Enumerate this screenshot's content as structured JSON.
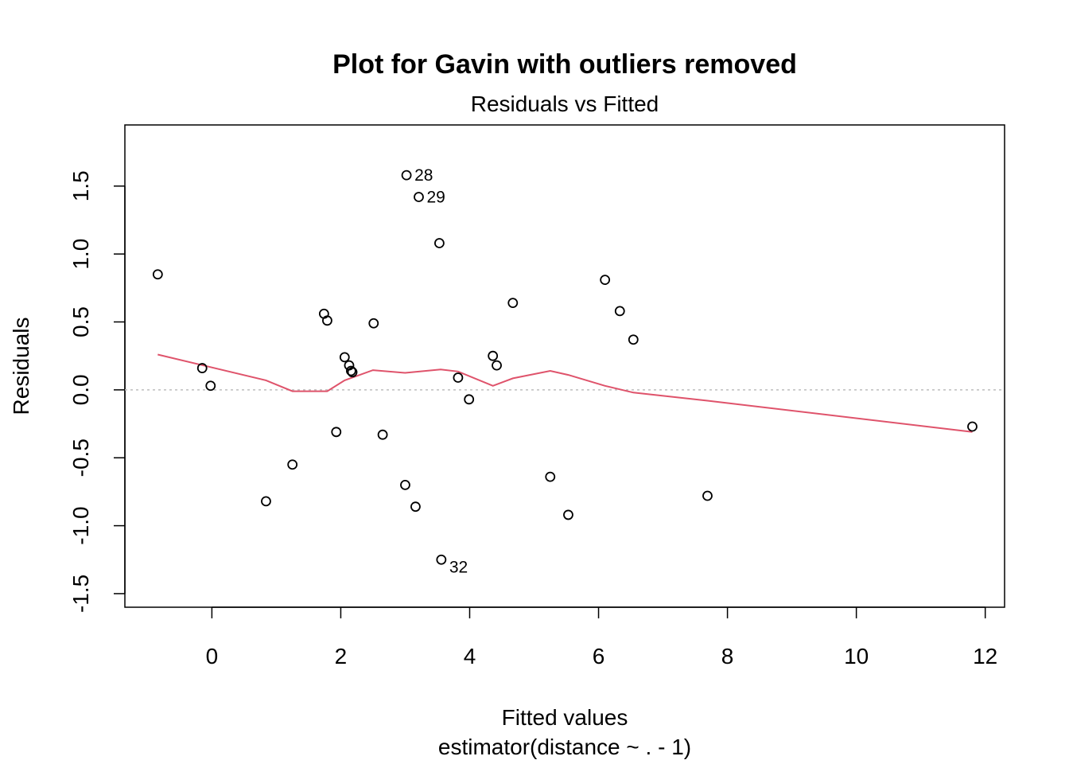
{
  "chart_data": {
    "type": "scatter",
    "title": "Plot for Gavin with outliers removed",
    "subtitle": "Residuals vs Fitted",
    "xlabel": "Fitted values",
    "xlabel2": "estimator(distance ~ . - 1)",
    "ylabel": "Residuals",
    "xlim": [
      -1.35,
      12.3
    ],
    "ylim": [
      -1.6,
      1.95
    ],
    "x_ticks": [
      0,
      2,
      4,
      6,
      8,
      10,
      12
    ],
    "x_tick_labels": [
      "0",
      "2",
      "4",
      "6",
      "8",
      "10",
      "12"
    ],
    "y_ticks": [
      -1.5,
      -1.0,
      -0.5,
      0.0,
      0.5,
      1.0,
      1.5
    ],
    "y_tick_labels": [
      "-1.5",
      "-1.0",
      "-0.5",
      "0.0",
      "0.5",
      "1.0",
      "1.5"
    ],
    "reference_line_y": 0,
    "smooth_color": "#DF536B",
    "reference_color": "#BEBEBE",
    "points": [
      {
        "x": -0.84,
        "y": 0.85
      },
      {
        "x": -0.15,
        "y": 0.16
      },
      {
        "x": -0.02,
        "y": 0.03
      },
      {
        "x": 0.84,
        "y": -0.82
      },
      {
        "x": 1.25,
        "y": -0.55
      },
      {
        "x": 1.74,
        "y": 0.56
      },
      {
        "x": 1.79,
        "y": 0.51
      },
      {
        "x": 1.93,
        "y": -0.31
      },
      {
        "x": 2.06,
        "y": 0.24
      },
      {
        "x": 2.13,
        "y": 0.18
      },
      {
        "x": 2.16,
        "y": 0.14
      },
      {
        "x": 2.18,
        "y": 0.13
      },
      {
        "x": 2.51,
        "y": 0.49
      },
      {
        "x": 2.65,
        "y": -0.33
      },
      {
        "x": 3.0,
        "y": -0.7
      },
      {
        "x": 3.02,
        "y": 1.58,
        "label": "28"
      },
      {
        "x": 3.16,
        "y": -0.86
      },
      {
        "x": 3.21,
        "y": 1.42,
        "label": "29"
      },
      {
        "x": 3.53,
        "y": 1.08
      },
      {
        "x": 3.56,
        "y": -1.25,
        "label": "32"
      },
      {
        "x": 3.82,
        "y": 0.09
      },
      {
        "x": 3.99,
        "y": -0.07
      },
      {
        "x": 4.36,
        "y": 0.25
      },
      {
        "x": 4.42,
        "y": 0.18
      },
      {
        "x": 4.67,
        "y": 0.64
      },
      {
        "x": 5.25,
        "y": -0.64
      },
      {
        "x": 5.53,
        "y": -0.92
      },
      {
        "x": 6.1,
        "y": 0.81
      },
      {
        "x": 6.33,
        "y": 0.58
      },
      {
        "x": 6.54,
        "y": 0.37
      },
      {
        "x": 7.69,
        "y": -0.78
      },
      {
        "x": 11.8,
        "y": -0.27
      }
    ],
    "smooth": [
      {
        "x": -0.84,
        "y": 0.26
      },
      {
        "x": 0.84,
        "y": 0.07
      },
      {
        "x": 1.25,
        "y": -0.01
      },
      {
        "x": 1.79,
        "y": -0.01
      },
      {
        "x": 2.06,
        "y": 0.07
      },
      {
        "x": 2.5,
        "y": 0.145
      },
      {
        "x": 3.0,
        "y": 0.125
      },
      {
        "x": 3.55,
        "y": 0.15
      },
      {
        "x": 3.82,
        "y": 0.135
      },
      {
        "x": 4.36,
        "y": 0.03
      },
      {
        "x": 4.67,
        "y": 0.085
      },
      {
        "x": 5.25,
        "y": 0.14
      },
      {
        "x": 5.53,
        "y": 0.11
      },
      {
        "x": 6.1,
        "y": 0.03
      },
      {
        "x": 6.54,
        "y": -0.02
      },
      {
        "x": 7.69,
        "y": -0.08
      },
      {
        "x": 11.8,
        "y": -0.31
      }
    ]
  }
}
